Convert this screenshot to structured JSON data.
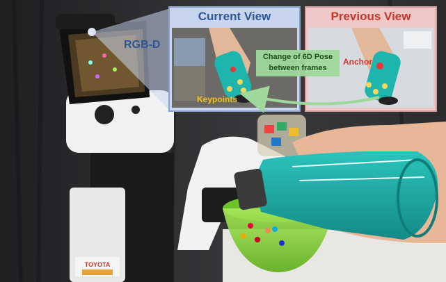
{
  "figure": {
    "current_view_title": "Current View",
    "previous_view_title": "Previous View",
    "rgbd_label": "RGB-D",
    "pose_change_label_line1": "Change of 6D Pose",
    "pose_change_label_line2": "between frames",
    "anchor_label": "Anchor",
    "keypoints_label": "Keypoints",
    "robot_brand": "TOYOTA"
  },
  "colors": {
    "current_view_accent": "#2f5597",
    "previous_view_accent": "#c0392b",
    "arrow_green": "#9ed89a",
    "bottle_teal": "#1aa9a4",
    "bowl_green": "#7ed321"
  }
}
